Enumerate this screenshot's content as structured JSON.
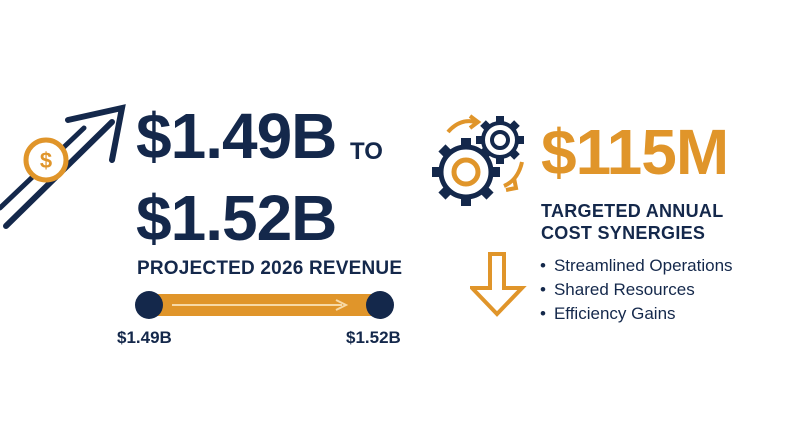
{
  "revenue": {
    "low": "$1.49B",
    "connector": "TO",
    "high": "$1.52B",
    "caption": "PROJECTED 2026 REVENUE",
    "range_start_label": "$1.49B",
    "range_end_label": "$1.52B"
  },
  "synergies": {
    "value": "$115M",
    "caption_line1": "TARGETED ANNUAL",
    "caption_line2": "COST SYNERGIES",
    "bullets": [
      "Streamlined Operations",
      "Shared Resources",
      "Efficiency Gains"
    ]
  },
  "icons": {
    "growth": "dollar-arrow-up-icon",
    "gears": "gears-icon",
    "down": "arrow-down-icon"
  },
  "colors": {
    "navy": "#14284b",
    "gold": "#e0952a"
  }
}
